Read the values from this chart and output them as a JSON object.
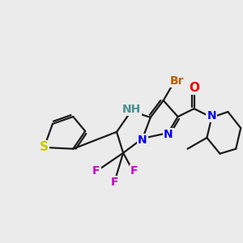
{
  "background_color": "#ebebeb",
  "bond_color": "#1a1a1a",
  "bond_width": 1.6,
  "atoms": {
    "S": {
      "color": "#c8c800",
      "fontsize": 11
    },
    "N": {
      "color": "#0000ee",
      "fontsize": 10
    },
    "NH": {
      "color": "#4a9090",
      "fontsize": 10
    },
    "Br": {
      "color": "#b86000",
      "fontsize": 10
    },
    "O": {
      "color": "#ee0000",
      "fontsize": 11
    },
    "F": {
      "color": "#cc00cc",
      "fontsize": 10
    }
  },
  "figsize": [
    3.0,
    3.0
  ],
  "dpi": 100
}
